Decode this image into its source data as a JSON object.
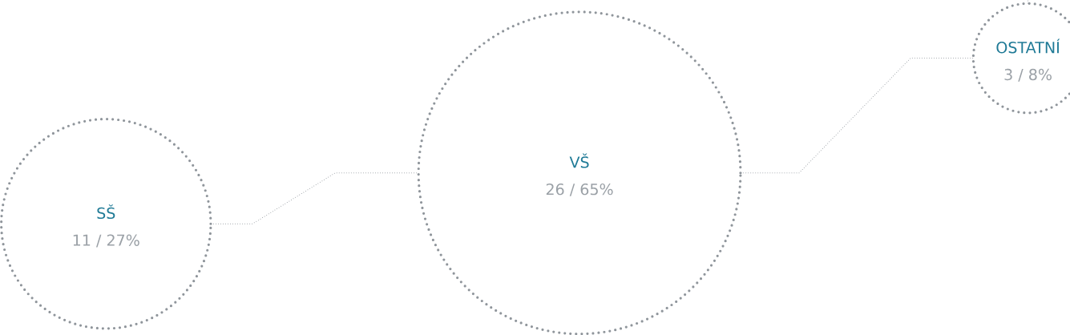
{
  "chart_data": {
    "type": "other",
    "categories": [
      "SŠ",
      "VŠ",
      "OSTATNÍ"
    ],
    "values": [
      11,
      26,
      3
    ],
    "value_labels": [
      "11 / 27%",
      "26 / 65%",
      "3 / 8%"
    ],
    "color": "#8f959b"
  }
}
